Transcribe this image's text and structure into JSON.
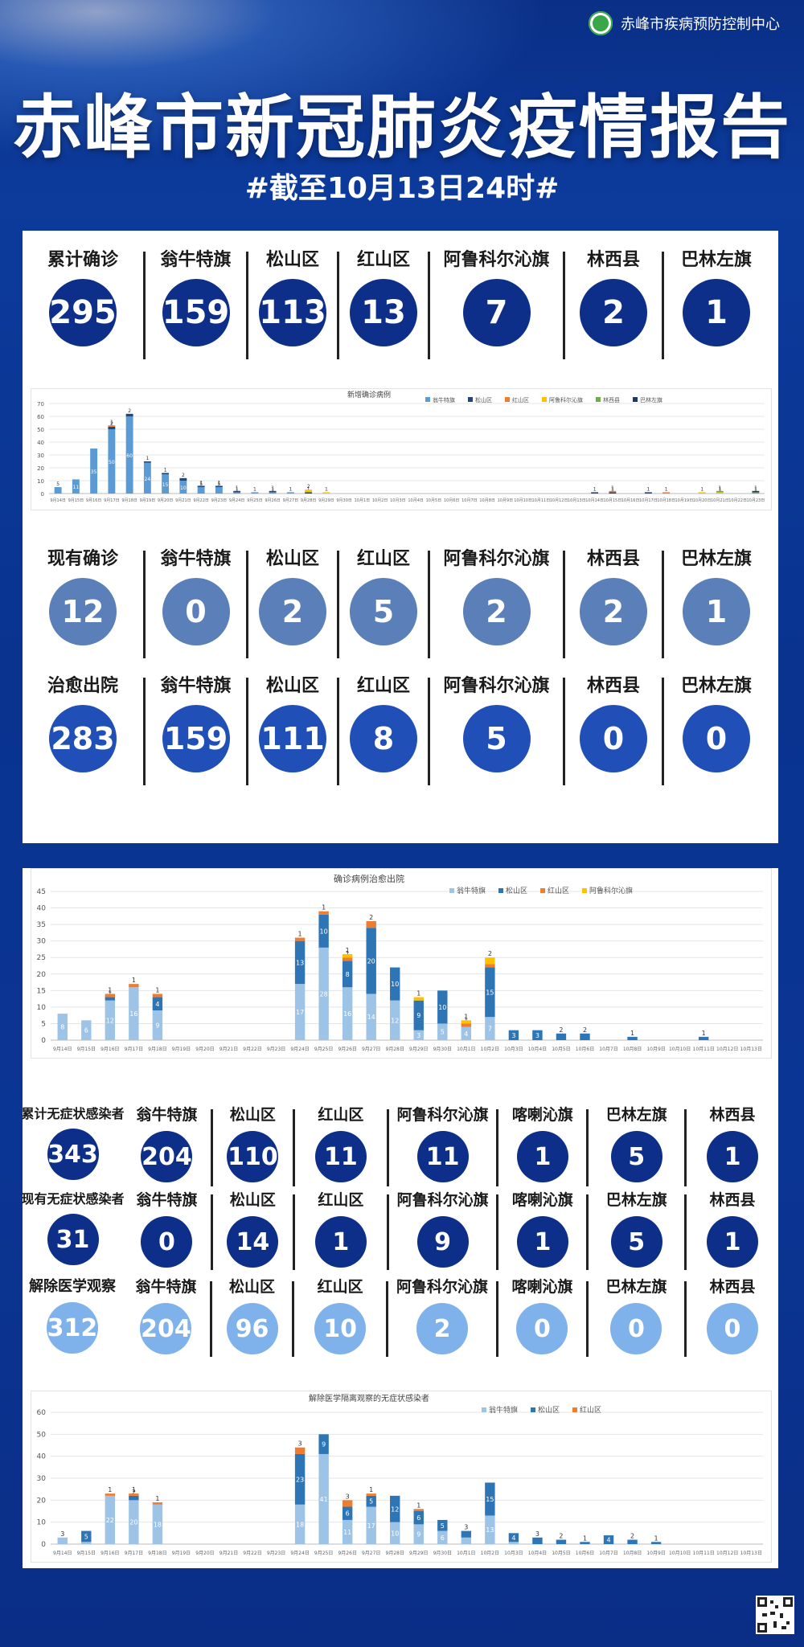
{
  "header": {
    "org": "赤峰市疾病预防控制中心",
    "title": "赤峰市新冠肺炎疫情报告",
    "subtitle": "#截至10月13日24时#"
  },
  "colors": {
    "dark": "#0d2f8a",
    "medium": "#5b7fb8",
    "bright": "#1f4fb7",
    "light": "#7fb1eb"
  },
  "cumulative_confirmed": [
    {
      "label": "累计确诊",
      "value": "295"
    },
    {
      "label": "翁牛特旗",
      "value": "159"
    },
    {
      "label": "松山区",
      "value": "113"
    },
    {
      "label": "红山区",
      "value": "13"
    },
    {
      "label": "阿鲁科尔沁旗",
      "value": "7"
    },
    {
      "label": "林西县",
      "value": "2"
    },
    {
      "label": "巴林左旗",
      "value": "1"
    }
  ],
  "current_confirmed": [
    {
      "label": "现有确诊",
      "value": "12"
    },
    {
      "label": "翁牛特旗",
      "value": "0"
    },
    {
      "label": "松山区",
      "value": "2"
    },
    {
      "label": "红山区",
      "value": "5"
    },
    {
      "label": "阿鲁科尔沁旗",
      "value": "2"
    },
    {
      "label": "林西县",
      "value": "2"
    },
    {
      "label": "巴林左旗",
      "value": "1"
    }
  ],
  "recovered": [
    {
      "label": "治愈出院",
      "value": "283"
    },
    {
      "label": "翁牛特旗",
      "value": "159"
    },
    {
      "label": "松山区",
      "value": "111"
    },
    {
      "label": "红山区",
      "value": "8"
    },
    {
      "label": "阿鲁科尔沁旗",
      "value": "5"
    },
    {
      "label": "林西县",
      "value": "0"
    },
    {
      "label": "巴林左旗",
      "value": "0"
    }
  ],
  "asym_cumulative": [
    {
      "label": "累计无症状感染者",
      "value": "343"
    },
    {
      "label": "翁牛特旗",
      "value": "204"
    },
    {
      "label": "松山区",
      "value": "110"
    },
    {
      "label": "红山区",
      "value": "11"
    },
    {
      "label": "阿鲁科尔沁旗",
      "value": "11"
    },
    {
      "label": "喀喇沁旗",
      "value": "1"
    },
    {
      "label": "巴林左旗",
      "value": "5"
    },
    {
      "label": "林西县",
      "value": "1"
    }
  ],
  "asym_current": [
    {
      "label": "现有无症状感染者",
      "value": "31"
    },
    {
      "label": "翁牛特旗",
      "value": "0"
    },
    {
      "label": "松山区",
      "value": "14"
    },
    {
      "label": "红山区",
      "value": "1"
    },
    {
      "label": "阿鲁科尔沁旗",
      "value": "9"
    },
    {
      "label": "喀喇沁旗",
      "value": "1"
    },
    {
      "label": "巴林左旗",
      "value": "5"
    },
    {
      "label": "林西县",
      "value": "1"
    }
  ],
  "asym_released": [
    {
      "label": "解除医学观察",
      "value": "312"
    },
    {
      "label": "翁牛特旗",
      "value": "204"
    },
    {
      "label": "松山区",
      "value": "96"
    },
    {
      "label": "红山区",
      "value": "10"
    },
    {
      "label": "阿鲁科尔沁旗",
      "value": "2"
    },
    {
      "label": "喀喇沁旗",
      "value": "0"
    },
    {
      "label": "巴林左旗",
      "value": "0"
    },
    {
      "label": "林西县",
      "value": "0"
    }
  ],
  "chart_data": [
    {
      "type": "bar",
      "title": "新增确诊病例",
      "ylim": [
        0,
        70
      ],
      "yticks": [
        0,
        10,
        20,
        30,
        40,
        50,
        60,
        70
      ],
      "categories": [
        "9月14日",
        "9月15日",
        "9月16日",
        "9月17日",
        "9月18日",
        "9月19日",
        "9月20日",
        "9月21日",
        "9月22日",
        "9月23日",
        "9月24日",
        "9月25日",
        "9月26日",
        "9月27日",
        "9月28日",
        "9月29日",
        "9月30日",
        "10月1日",
        "10月2日",
        "10月3日",
        "10月4日",
        "10月5日",
        "10月6日",
        "10月7日",
        "10月8日",
        "10月9日",
        "10月10日",
        "10月11日",
        "10月12日",
        "10月13日",
        "10月14日",
        "10月15日",
        "10月16日",
        "10月17日",
        "10月18日",
        "10月19日",
        "10月20日",
        "10月21日",
        "10月22日",
        "10月23日"
      ],
      "series": [
        {
          "name": "翁牛特旗",
          "color": "#5b9bd5",
          "values": [
            5,
            11,
            35,
            50,
            60,
            24,
            15,
            10,
            5,
            5,
            1,
            1,
            1,
            1,
            0,
            0,
            0,
            0,
            0,
            0,
            0,
            0,
            0,
            0,
            0,
            0,
            0,
            0,
            0,
            0,
            0,
            0,
            0,
            0,
            0,
            0,
            0,
            0,
            0,
            0
          ]
        },
        {
          "name": "松山区",
          "color": "#264478",
          "values": [
            0,
            0,
            0,
            2,
            2,
            1,
            1,
            2,
            1,
            1,
            1,
            0,
            1,
            0,
            1,
            0,
            0,
            0,
            0,
            0,
            0,
            0,
            0,
            0,
            0,
            0,
            0,
            0,
            0,
            0,
            1,
            1,
            0,
            1,
            0,
            0,
            0,
            0,
            0,
            0
          ]
        },
        {
          "name": "红山区",
          "color": "#ed7d31",
          "values": [
            0,
            0,
            0,
            1,
            0,
            0,
            0,
            0,
            0,
            0,
            0,
            0,
            0,
            0,
            0,
            0,
            0,
            0,
            0,
            0,
            0,
            0,
            0,
            0,
            0,
            0,
            0,
            0,
            0,
            0,
            0,
            1,
            0,
            0,
            1,
            0,
            0,
            0,
            0,
            0
          ]
        },
        {
          "name": "阿鲁科尔沁旗",
          "color": "#ffc000",
          "values": [
            0,
            0,
            0,
            0,
            0,
            0,
            0,
            0,
            0,
            0,
            0,
            0,
            0,
            0,
            2,
            1,
            0,
            0,
            0,
            0,
            0,
            0,
            0,
            0,
            0,
            0,
            0,
            0,
            0,
            0,
            0,
            0,
            0,
            0,
            0,
            0,
            1,
            1,
            0,
            0
          ]
        },
        {
          "name": "林西县",
          "color": "#70ad47",
          "values": [
            0,
            0,
            0,
            0,
            0,
            0,
            0,
            0,
            0,
            0,
            0,
            0,
            0,
            0,
            0,
            0,
            0,
            0,
            0,
            0,
            0,
            0,
            0,
            0,
            0,
            0,
            0,
            0,
            0,
            0,
            0,
            0,
            0,
            0,
            0,
            0,
            0,
            1,
            0,
            1
          ]
        },
        {
          "name": "巴林左旗",
          "color": "#1f3864",
          "values": [
            0,
            0,
            0,
            0,
            0,
            0,
            0,
            0,
            0,
            0,
            0,
            0,
            0,
            0,
            0,
            0,
            0,
            0,
            0,
            0,
            0,
            0,
            0,
            0,
            0,
            0,
            0,
            0,
            0,
            0,
            0,
            0,
            0,
            0,
            0,
            0,
            0,
            0,
            0,
            1
          ]
        }
      ],
      "legend": "top-right"
    },
    {
      "type": "bar",
      "title": "确诊病例治愈出院",
      "ylim": [
        0,
        45
      ],
      "yticks": [
        0,
        5,
        10,
        15,
        20,
        25,
        30,
        35,
        40,
        45
      ],
      "categories": [
        "9月14日",
        "9月15日",
        "9月16日",
        "9月17日",
        "9月18日",
        "9月19日",
        "9月20日",
        "9月21日",
        "9月22日",
        "9月23日",
        "9月24日",
        "9月25日",
        "9月26日",
        "9月27日",
        "9月28日",
        "9月29日",
        "9月30日",
        "10月1日",
        "10月2日",
        "10月3日",
        "10月4日",
        "10月5日",
        "10月6日",
        "10月7日",
        "10月8日",
        "10月9日",
        "10月10日",
        "10月11日",
        "10月12日",
        "10月13日"
      ],
      "series": [
        {
          "name": "翁牛特旗",
          "color": "#9dc3e6",
          "values": [
            8,
            6,
            12,
            16,
            9,
            0,
            0,
            0,
            0,
            0,
            17,
            28,
            16,
            14,
            12,
            3,
            5,
            4,
            7,
            0,
            0,
            0,
            0,
            0,
            0,
            0,
            0,
            0,
            0,
            0
          ]
        },
        {
          "name": "松山区",
          "color": "#2e75b6",
          "values": [
            0,
            0,
            1,
            0,
            4,
            0,
            0,
            0,
            0,
            0,
            13,
            10,
            8,
            20,
            10,
            9,
            10,
            0,
            15,
            3,
            3,
            2,
            2,
            0,
            1,
            0,
            0,
            1,
            0,
            0
          ]
        },
        {
          "name": "红山区",
          "color": "#ed7d31",
          "values": [
            0,
            0,
            1,
            1,
            1,
            0,
            0,
            0,
            0,
            0,
            1,
            1,
            1,
            2,
            0,
            0,
            0,
            1,
            1,
            0,
            0,
            0,
            0,
            0,
            0,
            0,
            0,
            0,
            0,
            0
          ]
        },
        {
          "name": "阿鲁科尔沁旗",
          "color": "#ffc000",
          "values": [
            0,
            0,
            0,
            0,
            0,
            0,
            0,
            0,
            0,
            0,
            0,
            0,
            1,
            0,
            0,
            1,
            0,
            1,
            2,
            0,
            0,
            0,
            0,
            0,
            0,
            0,
            0,
            0,
            0,
            0
          ]
        }
      ],
      "legend": "top-right"
    },
    {
      "type": "bar",
      "title": "解除医学隔离观察的无症状感染者",
      "ylim": [
        0,
        60
      ],
      "yticks": [
        0,
        10,
        20,
        30,
        40,
        50,
        60
      ],
      "categories": [
        "9月14日",
        "9月15日",
        "9月16日",
        "9月17日",
        "9月18日",
        "9月19日",
        "9月20日",
        "9月21日",
        "9月22日",
        "9月23日",
        "9月24日",
        "9月25日",
        "9月26日",
        "9月27日",
        "9月28日",
        "9月29日",
        "9月30日",
        "10月1日",
        "10月2日",
        "10月3日",
        "10月4日",
        "10月5日",
        "10月6日",
        "10月7日",
        "10月8日",
        "10月9日",
        "10月10日",
        "10月11日",
        "10月12日",
        "10月13日"
      ],
      "series": [
        {
          "name": "翁牛特旗",
          "color": "#9dc3e6",
          "values": [
            3,
            1,
            22,
            20,
            18,
            0,
            0,
            0,
            0,
            0,
            18,
            41,
            11,
            17,
            10,
            9,
            6,
            3,
            13,
            1,
            0,
            0,
            0,
            0,
            0,
            0,
            0,
            0,
            0,
            0
          ]
        },
        {
          "name": "松山区",
          "color": "#2e75b6",
          "values": [
            0,
            5,
            0,
            2,
            0,
            0,
            0,
            0,
            0,
            0,
            23,
            9,
            6,
            5,
            12,
            6,
            5,
            3,
            15,
            4,
            3,
            2,
            1,
            4,
            2,
            1,
            0,
            0,
            0,
            0
          ]
        },
        {
          "name": "红山区",
          "color": "#ed7d31",
          "values": [
            0,
            0,
            1,
            1,
            1,
            0,
            0,
            0,
            0,
            0,
            3,
            0,
            3,
            1,
            0,
            1,
            0,
            0,
            0,
            0,
            0,
            0,
            0,
            0,
            0,
            0,
            0,
            0,
            0,
            0
          ]
        }
      ],
      "legend": "top-right"
    }
  ]
}
